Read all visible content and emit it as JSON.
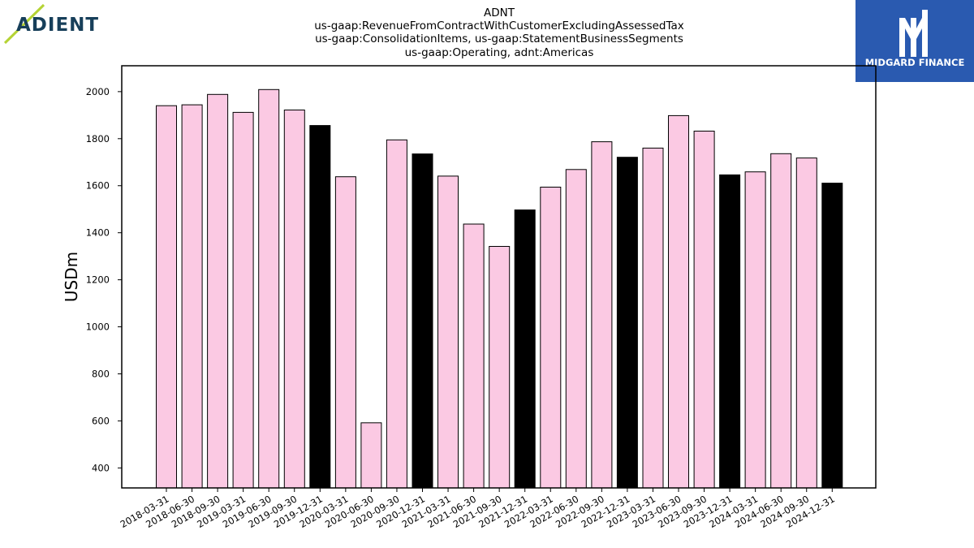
{
  "logos": {
    "company": "ADIENT",
    "publisher": "MIDGARD FINANCE"
  },
  "colors": {
    "bar_default": "#fbc9e3",
    "bar_highlight": "#000000",
    "bar_edge": "#000000",
    "adient_text": "#173f5a",
    "adient_slash": "#b5d334",
    "midgard_bg": "#2a5ab0"
  },
  "chart_data": {
    "type": "bar",
    "title_lines": [
      "ADNT",
      "us-gaap:RevenueFromContractWithCustomerExcludingAssessedTax",
      "us-gaap:ConsolidationItems, us-gaap:StatementBusinessSegments",
      "us-gaap:Operating, adnt:Americas"
    ],
    "xlabel": "",
    "ylabel": "USDm",
    "ylim": [
      315,
      2110
    ],
    "yticks": [
      400,
      600,
      800,
      1000,
      1200,
      1400,
      1600,
      1800,
      2000
    ],
    "categories": [
      "2018-03-31",
      "2018-06-30",
      "2018-09-30",
      "2019-03-31",
      "2019-06-30",
      "2019-09-30",
      "2019-12-31",
      "2020-03-31",
      "2020-06-30",
      "2020-09-30",
      "2020-12-31",
      "2021-03-31",
      "2021-06-30",
      "2021-09-30",
      "2021-12-31",
      "2022-03-31",
      "2022-06-30",
      "2022-09-30",
      "2022-12-31",
      "2023-03-31",
      "2023-06-30",
      "2023-09-30",
      "2023-12-31",
      "2024-03-31",
      "2024-06-30",
      "2024-09-30",
      "2024-12-31"
    ],
    "values": [
      1940,
      1944,
      1988,
      1912,
      2009,
      1922,
      1856,
      1638,
      592,
      1795,
      1735,
      1641,
      1437,
      1342,
      1497,
      1594,
      1669,
      1787,
      1721,
      1760,
      1898,
      1832,
      1646,
      1659,
      1736,
      1718,
      1611
    ],
    "highlight": [
      false,
      false,
      false,
      false,
      false,
      false,
      true,
      false,
      false,
      false,
      true,
      false,
      false,
      false,
      true,
      false,
      false,
      false,
      true,
      false,
      false,
      false,
      true,
      false,
      false,
      false,
      true
    ],
    "grid": false,
    "legend": "none"
  }
}
